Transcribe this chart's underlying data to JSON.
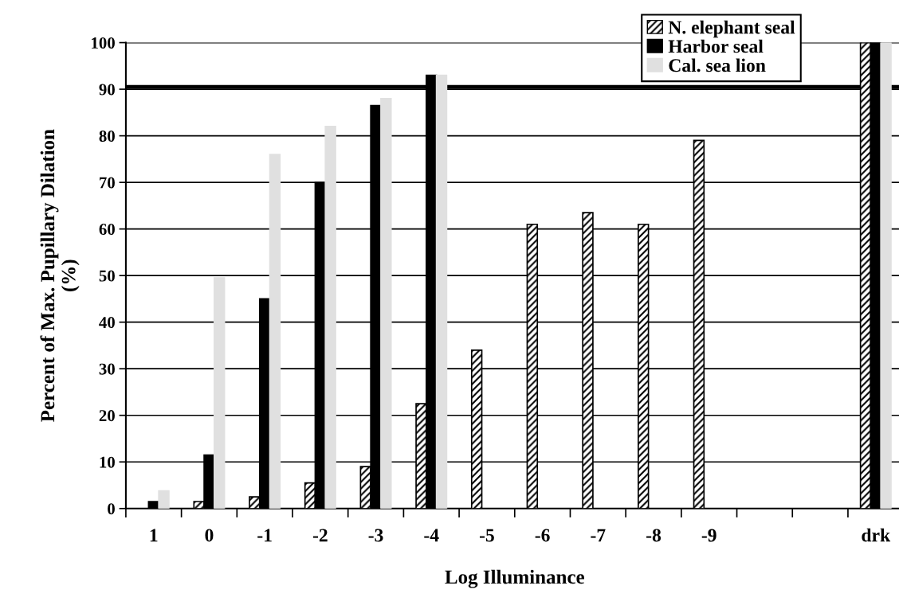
{
  "chart_data": {
    "type": "bar",
    "xlabel": "Log Illuminance",
    "ylabel": "Percent of Max. Pupillary Dilation\n(%)",
    "categories": [
      "1",
      "0",
      "-1",
      "-2",
      "-3",
      "-4",
      "-5",
      "-6",
      "-7",
      "-8",
      "-9",
      null,
      null,
      "drk"
    ],
    "series": [
      {
        "name": "N. elephant seal",
        "color": "#000000",
        "values": [
          null,
          1.5,
          2.5,
          5.5,
          9,
          22.5,
          34,
          61,
          63.5,
          61,
          79,
          null,
          null,
          100
        ]
      },
      {
        "name": "Harbor seal",
        "color": "#000000",
        "values": [
          1.5,
          11.5,
          45,
          70,
          86.5,
          93,
          null,
          null,
          null,
          null,
          null,
          null,
          null,
          100
        ]
      },
      {
        "name": "Cal. sea lion",
        "color": "#e0e0e0",
        "values": [
          3.8,
          49.5,
          76,
          82,
          88,
          93,
          null,
          null,
          null,
          null,
          null,
          null,
          null,
          100
        ]
      }
    ],
    "ylim": [
      0,
      100
    ],
    "yticks": [
      0,
      10,
      20,
      30,
      40,
      50,
      60,
      70,
      80,
      90,
      100
    ],
    "grid": "y",
    "legend": "top right",
    "ref_lines": [
      {
        "axis": "y",
        "value": 90.5,
        "color": "#000000"
      }
    ]
  }
}
